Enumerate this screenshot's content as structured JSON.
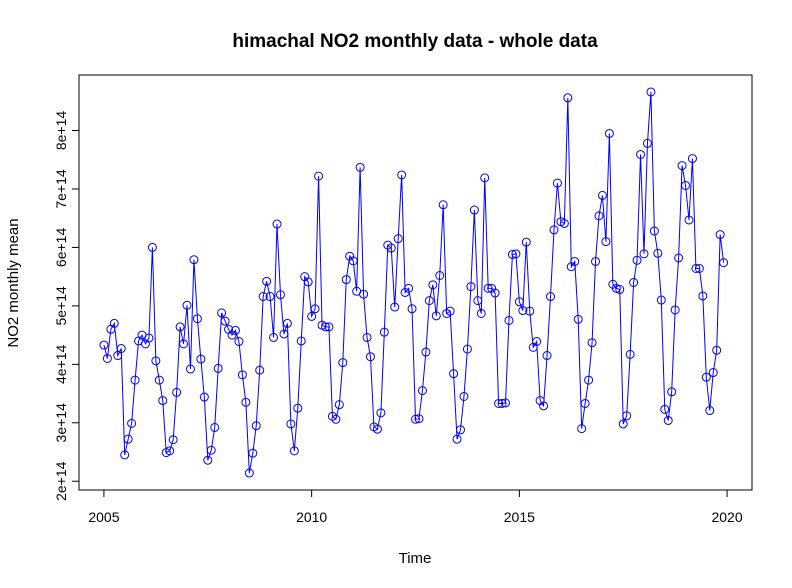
{
  "chart_data": {
    "type": "line",
    "title": "himachal NO2 monthly data - whole data",
    "xlabel": "Time",
    "ylabel": "NO2 monthly mean",
    "xlim": [
      2004.4,
      2020.6
    ],
    "ylim": [
      185000000000000.0,
      895000000000000.0
    ],
    "x_ticks": [
      2005,
      2010,
      2015,
      2020
    ],
    "x_tick_labels": [
      "2005",
      "2010",
      "2015",
      "2020"
    ],
    "y_ticks": [
      200000000000000.0,
      300000000000000.0,
      400000000000000.0,
      500000000000000.0,
      600000000000000.0,
      700000000000000.0,
      800000000000000.0
    ],
    "y_tick_labels": [
      "2e+14",
      "3e+14",
      "4e+14",
      "5e+14",
      "6e+14",
      "7e+14",
      "8e+14"
    ],
    "grid": false,
    "series": [
      {
        "color": "#0000ff",
        "marker": "open-circle",
        "start": 2005.0,
        "frequency": 12,
        "values": [
          433000000000000.0,
          410000000000000.0,
          460000000000000.0,
          470000000000000.0,
          415000000000000.0,
          427000000000000.0,
          245000000000000.0,
          272000000000000.0,
          299000000000000.0,
          373000000000000.0,
          440000000000000.0,
          450000000000000.0,
          435000000000000.0,
          445000000000000.0,
          600000000000000.0,
          406000000000000.0,
          373000000000000.0,
          338000000000000.0,
          249000000000000.0,
          252000000000000.0,
          271000000000000.0,
          352000000000000.0,
          464000000000000.0,
          435000000000000.0,
          501000000000000.0,
          392000000000000.0,
          579000000000000.0,
          478000000000000.0,
          409000000000000.0,
          344000000000000.0,
          236000000000000.0,
          253000000000000.0,
          292000000000000.0,
          393000000000000.0,
          488000000000000.0,
          474000000000000.0,
          460000000000000.0,
          450000000000000.0,
          458000000000000.0,
          439000000000000.0,
          382000000000000.0,
          335000000000000.0,
          214000000000000.0,
          248000000000000.0,
          295000000000000.0,
          390000000000000.0,
          516000000000000.0,
          542000000000000.0,
          516000000000000.0,
          446000000000000.0,
          640000000000000.0,
          519000000000000.0,
          452000000000000.0,
          470000000000000.0,
          298000000000000.0,
          252000000000000.0,
          325000000000000.0,
          440000000000000.0,
          550000000000000.0,
          541000000000000.0,
          482000000000000.0,
          495000000000000.0,
          722000000000000.0,
          467000000000000.0,
          464000000000000.0,
          464000000000000.0,
          311000000000000.0,
          306000000000000.0,
          331000000000000.0,
          403000000000000.0,
          545000000000000.0,
          585000000000000.0,
          577000000000000.0,
          525000000000000.0,
          737000000000000.0,
          520000000000000.0,
          446000000000000.0,
          413000000000000.0,
          293000000000000.0,
          289000000000000.0,
          317000000000000.0,
          455000000000000.0,
          604000000000000.0,
          599000000000000.0,
          498000000000000.0,
          615000000000000.0,
          724000000000000.0,
          523000000000000.0,
          530000000000000.0,
          495000000000000.0,
          306000000000000.0,
          307000000000000.0,
          355000000000000.0,
          421000000000000.0,
          509000000000000.0,
          536000000000000.0,
          483000000000000.0,
          552000000000000.0,
          673000000000000.0,
          487000000000000.0,
          491000000000000.0,
          384000000000000.0,
          272000000000000.0,
          288000000000000.0,
          345000000000000.0,
          426000000000000.0,
          533000000000000.0,
          664000000000000.0,
          509000000000000.0,
          487000000000000.0,
          719000000000000.0,
          530000000000000.0,
          530000000000000.0,
          522000000000000.0,
          333000000000000.0,
          333000000000000.0,
          334000000000000.0,
          475000000000000.0,
          588000000000000.0,
          589000000000000.0,
          507000000000000.0,
          492000000000000.0,
          609000000000000.0,
          491000000000000.0,
          429000000000000.0,
          439000000000000.0,
          338000000000000.0,
          329000000000000.0,
          415000000000000.0,
          516000000000000.0,
          630000000000000.0,
          710000000000000.0,
          644000000000000.0,
          641000000000000.0,
          856000000000000.0,
          567000000000000.0,
          576000000000000.0,
          477000000000000.0,
          290000000000000.0,
          333000000000000.0,
          373000000000000.0,
          437000000000000.0,
          576000000000000.0,
          654000000000000.0,
          689000000000000.0,
          610000000000000.0,
          795000000000000.0,
          537000000000000.0,
          530000000000000.0,
          528000000000000.0,
          298000000000000.0,
          312000000000000.0,
          417000000000000.0,
          540000000000000.0,
          578000000000000.0,
          759000000000000.0,
          589000000000000.0,
          778000000000000.0,
          866000000000000.0,
          628000000000000.0,
          590000000000000.0,
          510000000000000.0,
          323000000000000.0,
          304000000000000.0,
          353000000000000.0,
          493000000000000.0,
          582000000000000.0,
          740000000000000.0,
          706000000000000.0,
          647000000000000.0,
          752000000000000.0,
          564000000000000.0,
          564000000000000.0,
          517000000000000.0,
          378000000000000.0,
          321000000000000.0,
          386000000000000.0,
          424000000000000.0,
          622000000000000.0,
          574000000000000.0
        ]
      }
    ]
  }
}
